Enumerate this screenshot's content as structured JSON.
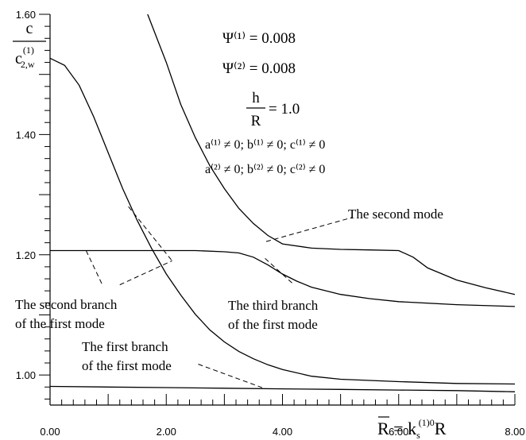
{
  "chart_data": {
    "type": "line",
    "title": "",
    "xlabel": "R̄ = k_s^(1)0 R",
    "ylabel": "c / c_2,w^(1)",
    "xlim": [
      0,
      8
    ],
    "ylim": [
      0.95,
      1.6
    ],
    "x_ticks": [
      {
        "value": 0,
        "label": "0.00"
      },
      {
        "value": 2,
        "label": "2.00"
      },
      {
        "value": 4,
        "label": "4.00"
      },
      {
        "value": 6,
        "label": "6.00"
      },
      {
        "value": 8,
        "label": "8.00"
      }
    ],
    "y_ticks": [
      {
        "value": 1.0,
        "label": "1.00"
      },
      {
        "value": 1.2,
        "label": "1.20"
      },
      {
        "value": 1.4,
        "label": "1.40"
      },
      {
        "value": 1.6,
        "label": "1.60"
      }
    ],
    "grid": false,
    "series": [
      {
        "id": "first-branch",
        "points": [
          [
            0,
            0.981
          ],
          [
            1,
            0.98
          ],
          [
            2,
            0.979
          ],
          [
            3,
            0.978
          ],
          [
            4,
            0.977
          ],
          [
            5,
            0.976
          ],
          [
            6,
            0.975
          ],
          [
            7,
            0.974
          ],
          [
            8,
            0.972
          ]
        ]
      },
      {
        "id": "second-branch-lower",
        "points": [
          [
            0,
            1.527
          ],
          [
            0.25,
            1.515
          ],
          [
            0.5,
            1.482
          ],
          [
            0.75,
            1.43
          ],
          [
            1,
            1.37
          ],
          [
            1.25,
            1.31
          ],
          [
            1.5,
            1.257
          ],
          [
            1.75,
            1.21
          ],
          [
            2,
            1.168
          ],
          [
            2.25,
            1.133
          ],
          [
            2.5,
            1.101
          ],
          [
            2.75,
            1.075
          ],
          [
            3,
            1.055
          ],
          [
            3.25,
            1.039
          ],
          [
            3.5,
            1.027
          ],
          [
            3.75,
            1.017
          ],
          [
            4,
            1.009
          ],
          [
            4.5,
            0.998
          ],
          [
            5,
            0.993
          ],
          [
            6,
            0.989
          ],
          [
            7,
            0.986
          ],
          [
            8,
            0.985
          ]
        ]
      },
      {
        "id": "third-branch",
        "points": [
          [
            0,
            1.207
          ],
          [
            0.5,
            1.207
          ],
          [
            1,
            1.207
          ],
          [
            1.5,
            1.207
          ],
          [
            2,
            1.207
          ],
          [
            2.5,
            1.207
          ],
          [
            3,
            1.205
          ],
          [
            3.25,
            1.203
          ],
          [
            3.5,
            1.196
          ],
          [
            3.75,
            1.183
          ],
          [
            4,
            1.168
          ],
          [
            4.25,
            1.156
          ],
          [
            4.5,
            1.146
          ],
          [
            5,
            1.134
          ],
          [
            5.5,
            1.127
          ],
          [
            6,
            1.122
          ],
          [
            7,
            1.117
          ],
          [
            8,
            1.114
          ]
        ]
      },
      {
        "id": "second-mode",
        "points": [
          [
            1.68,
            1.6
          ],
          [
            2,
            1.52
          ],
          [
            2.25,
            1.45
          ],
          [
            2.5,
            1.395
          ],
          [
            2.75,
            1.348
          ],
          [
            3,
            1.31
          ],
          [
            3.25,
            1.277
          ],
          [
            3.5,
            1.252
          ],
          [
            3.75,
            1.232
          ],
          [
            4,
            1.218
          ],
          [
            4.5,
            1.211
          ],
          [
            5,
            1.209
          ],
          [
            5.5,
            1.208
          ],
          [
            6,
            1.207
          ],
          [
            6.25,
            1.196
          ],
          [
            6.5,
            1.178
          ],
          [
            7,
            1.158
          ],
          [
            7.5,
            1.145
          ],
          [
            8,
            1.134
          ]
        ]
      }
    ],
    "leaders": [
      {
        "for": "The second mode",
        "from": [
          3.72,
          1.222
        ],
        "to": [
          5.2,
          1.262
        ]
      },
      {
        "for": "The third branch of the first mode",
        "from": [
          3.7,
          1.194
        ],
        "to": [
          4.2,
          1.15
        ]
      },
      {
        "for": "The second branch of the first mode",
        "from": [
          0.62,
          1.207
        ],
        "to": [
          0.9,
          1.15
        ]
      },
      {
        "for": "The second branch of the first mode",
        "from": [
          1.2,
          1.15
        ],
        "to": [
          2.1,
          1.19
        ]
      },
      {
        "for": "The second branch of the first mode",
        "from": [
          1.35,
          1.28
        ],
        "to": [
          2.1,
          1.19
        ]
      },
      {
        "for": "The first branch of the first mode",
        "from": [
          2.55,
          1.018
        ],
        "to": [
          3.65,
          0.979
        ]
      }
    ],
    "annotations": [
      {
        "id": "psi1",
        "text": "Ψ⁽¹⁾ = 0.008"
      },
      {
        "id": "psi2",
        "text": "Ψ⁽²⁾ = 0.008"
      },
      {
        "id": "h",
        "text": "h"
      },
      {
        "id": "r",
        "text": "R"
      },
      {
        "id": "hr_val",
        "text": "= 1.0"
      },
      {
        "id": "abc1",
        "text": "a⁽¹⁾ ≠ 0; b⁽¹⁾ ≠ 0; c⁽¹⁾ ≠ 0"
      },
      {
        "id": "abc2",
        "text": "a⁽²⁾ ≠ 0; b⁽²⁾ ≠ 0; c⁽²⁾ ≠ 0"
      },
      {
        "id": "second_mode",
        "text": "The second mode"
      },
      {
        "id": "third_branch_l1",
        "text": "The third branch"
      },
      {
        "id": "third_branch_l2",
        "text": "of the first mode"
      },
      {
        "id": "second_branch_l1",
        "text": "The second branch"
      },
      {
        "id": "second_branch_l2",
        "text": "of the first mode"
      },
      {
        "id": "first_branch_l1",
        "text": "The first branch"
      },
      {
        "id": "first_branch_l2",
        "text": "of the first mode"
      }
    ]
  },
  "colors": {
    "line": "#000000",
    "background": "#ffffff"
  }
}
